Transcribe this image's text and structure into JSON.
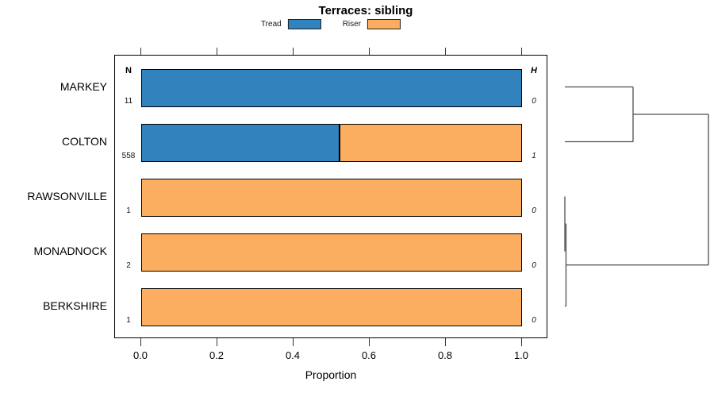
{
  "chart_data": {
    "type": "bar",
    "orientation": "horizontal",
    "stacked": true,
    "title": "Terraces: sibling",
    "xlabel": "Proportion",
    "categories": [
      "MARKEY",
      "COLTON",
      "RAWSONVILLE",
      "MONADNOCK",
      "BERKSHIRE"
    ],
    "series": [
      {
        "name": "Tread",
        "color": "#3182BD",
        "values": [
          1.0,
          0.52,
          0.0,
          0.0,
          0.0
        ]
      },
      {
        "name": "Riser",
        "color": "#FBAD60",
        "values": [
          0.0,
          0.48,
          1.0,
          1.0,
          1.0
        ]
      }
    ],
    "n_label": "N",
    "n_values": [
      11,
      558,
      1,
      2,
      1
    ],
    "h_label": "H",
    "h_values": [
      0,
      1,
      0,
      0,
      0
    ],
    "xlim": [
      0,
      1
    ],
    "x_ticks": [
      0.0,
      0.2,
      0.4,
      0.6,
      0.8,
      1.0
    ],
    "x_tick_labels": [
      "0.0",
      "0.2",
      "0.4",
      "0.6",
      "0.8",
      "1.0"
    ],
    "legend_position": "top",
    "grid": false,
    "dendrogram": {
      "axis": "right",
      "tree": {
        "h": 1.0,
        "children": [
          {
            "h": 0.475,
            "children": [
              {
                "row": 0
              },
              {
                "row": 1
              }
            ]
          },
          {
            "h": 0.008,
            "children": [
              {
                "h": 0.0,
                "children": [
                  {
                    "row": 2
                  },
                  {
                    "row": 3
                  }
                ]
              },
              {
                "row": 4
              }
            ]
          }
        ]
      },
      "line_color": "#4d4d4d"
    }
  }
}
